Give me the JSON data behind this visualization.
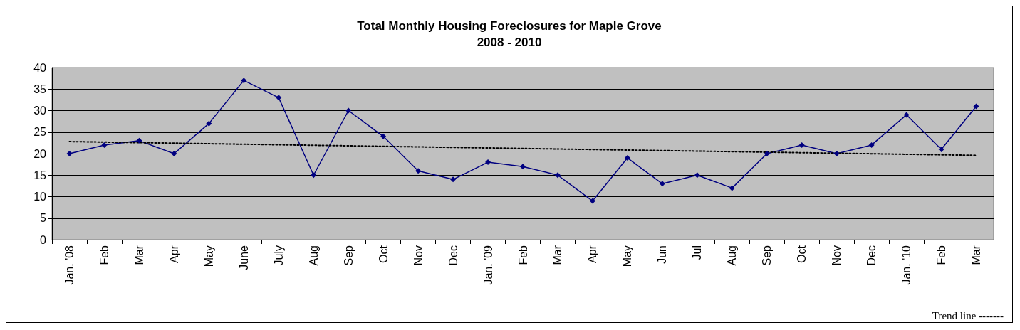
{
  "chart_data": {
    "type": "line",
    "title": "Total Monthly Housing Foreclosures for Maple Grove",
    "subtitle": "2008 - 2010",
    "categories": [
      "Jan. '08",
      "Feb",
      "Mar",
      "Apr",
      "May",
      "June",
      "July",
      "Aug",
      "Sep",
      "Oct",
      "Nov",
      "Dec",
      "Jan. '09",
      "Feb",
      "Mar",
      "Apr",
      "May",
      "Jun",
      "Jul",
      "Aug",
      "Sep",
      "Oct",
      "Nov",
      "Dec",
      "Jan. '10",
      "Feb",
      "Mar"
    ],
    "series": [
      {
        "color": "#000080",
        "marker": "diamond",
        "line_style": "solid",
        "values": [
          20,
          22,
          23,
          20,
          27,
          37,
          33,
          15,
          30,
          24,
          16,
          14,
          18,
          17,
          15,
          9,
          19,
          13,
          15,
          12,
          20,
          22,
          20,
          22,
          29,
          21,
          31
        ]
      },
      {
        "color": "#000000",
        "marker": "none",
        "line_style": "dotted",
        "values": [
          22.8,
          null,
          null,
          null,
          null,
          null,
          null,
          null,
          null,
          null,
          null,
          null,
          null,
          null,
          null,
          null,
          null,
          null,
          null,
          null,
          null,
          null,
          null,
          null,
          null,
          null,
          19.6
        ]
      }
    ],
    "ylim": [
      0,
      40
    ],
    "yticks": [
      0,
      5,
      10,
      15,
      20,
      25,
      30,
      35,
      40
    ],
    "grid": "y",
    "annotations": [
      "Trend line -------"
    ]
  }
}
